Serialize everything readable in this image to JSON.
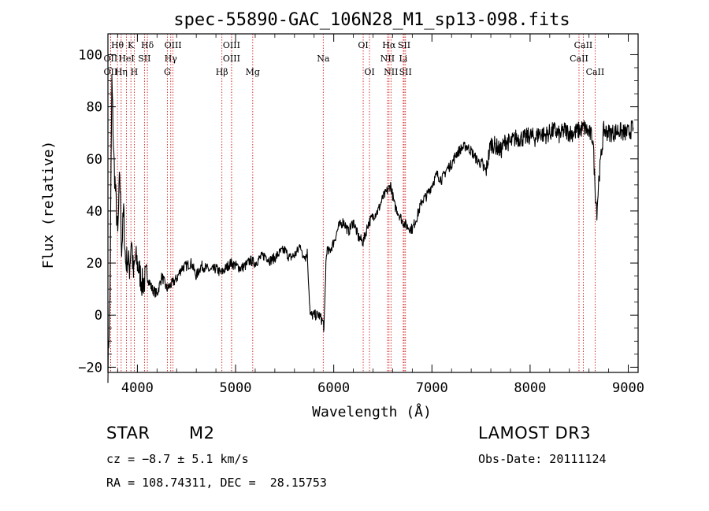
{
  "chart_data": {
    "type": "line",
    "title": "spec-55890-GAC_106N28_M1_sp13-098.fits",
    "xlabel": "Wavelength (Å)",
    "ylabel": "Flux (relative)",
    "xlim": [
      3700,
      9100
    ],
    "ylim": [
      -22,
      108
    ],
    "xticks": [
      4000,
      5000,
      6000,
      7000,
      8000,
      9000
    ],
    "yticks": [
      -20,
      0,
      20,
      40,
      60,
      80,
      100
    ],
    "grid": false,
    "series": [
      {
        "name": "flux",
        "x": [
          3700,
          3720,
          3740,
          3760,
          3780,
          3800,
          3820,
          3840,
          3860,
          3880,
          3900,
          3920,
          3940,
          3960,
          3980,
          4000,
          4050,
          4100,
          4150,
          4200,
          4250,
          4300,
          4350,
          4400,
          4450,
          4500,
          4550,
          4600,
          4650,
          4700,
          4750,
          4800,
          4850,
          4900,
          4950,
          5000,
          5050,
          5100,
          5150,
          5200,
          5250,
          5300,
          5350,
          5400,
          5450,
          5500,
          5550,
          5600,
          5620,
          5640,
          5660,
          5680,
          5700,
          5710,
          5720,
          5730,
          5760,
          5800,
          5850,
          5880,
          5895,
          5900,
          5910,
          5920,
          5930,
          5950,
          6000,
          6050,
          6100,
          6150,
          6200,
          6250,
          6300,
          6350,
          6400,
          6450,
          6500,
          6550,
          6580,
          6600,
          6620,
          6650,
          6700,
          6750,
          6800,
          6850,
          6900,
          6950,
          7000,
          7050,
          7100,
          7150,
          7200,
          7250,
          7300,
          7350,
          7400,
          7450,
          7500,
          7550,
          7600,
          7650,
          7700,
          7750,
          7800,
          7850,
          7900,
          7950,
          8000,
          8050,
          8100,
          8150,
          8200,
          8250,
          8300,
          8350,
          8400,
          8450,
          8500,
          8550,
          8600,
          8640,
          8660,
          8680,
          8700,
          8750,
          8800,
          8850,
          8900,
          8950,
          9000,
          9050
        ],
        "y": [
          -20,
          5,
          90,
          60,
          45,
          30,
          55,
          25,
          40,
          20,
          22,
          18,
          30,
          15,
          22,
          20,
          12,
          15,
          10,
          8,
          15,
          10,
          12,
          14,
          18,
          19,
          20,
          15,
          19,
          18,
          17,
          18,
          16,
          18,
          20,
          19,
          18,
          19,
          21,
          20,
          22,
          23,
          21,
          22,
          24,
          25,
          22,
          23,
          24,
          25,
          28,
          22,
          24,
          22,
          23,
          24,
          0,
          0,
          0,
          -2,
          -3,
          -6,
          5,
          20,
          25,
          24,
          28,
          34,
          36,
          32,
          36,
          30,
          28,
          35,
          38,
          40,
          45,
          48,
          50,
          46,
          42,
          40,
          36,
          34,
          33,
          38,
          44,
          46,
          50,
          54,
          52,
          56,
          58,
          62,
          64,
          65,
          63,
          60,
          58,
          55,
          66,
          65,
          63,
          67,
          66,
          68,
          68,
          68,
          69,
          68,
          70,
          69,
          70,
          71,
          69,
          71,
          70,
          70,
          71,
          72,
          70,
          68,
          50,
          40,
          52,
          71,
          70,
          70,
          71,
          70,
          70,
          72
        ]
      }
    ],
    "spectral_lines": [
      {
        "label": "Hθ",
        "wavelength": 3797,
        "row": 0
      },
      {
        "label": "K",
        "wavelength": 3934,
        "row": 0
      },
      {
        "label": "Hδ",
        "wavelength": 4102,
        "row": 0
      },
      {
        "label": "OIII",
        "wavelength": 4363,
        "row": 0
      },
      {
        "label": "OIII",
        "wavelength": 4959,
        "row": 0
      },
      {
        "label": "OI",
        "wavelength": 6300,
        "row": 0
      },
      {
        "label": "Hα",
        "wavelength": 6563,
        "row": 0
      },
      {
        "label": "SII",
        "wavelength": 6717,
        "row": 0
      },
      {
        "label": "CaII",
        "wavelength": 8542,
        "row": 0
      },
      {
        "label": "OII",
        "wavelength": 3727,
        "row": 1
      },
      {
        "label": "HeI",
        "wavelength": 3889,
        "row": 1
      },
      {
        "label": "SII",
        "wavelength": 4072,
        "row": 1
      },
      {
        "label": "Hγ",
        "wavelength": 4340,
        "row": 1
      },
      {
        "label": "OIII",
        "wavelength": 4959,
        "row": 1
      },
      {
        "label": "NII",
        "wavelength": 6548,
        "row": 1
      },
      {
        "label": "Li",
        "wavelength": 6708,
        "row": 1
      },
      {
        "label": "CaII",
        "wavelength": 8498,
        "row": 1
      },
      {
        "label": "OII",
        "wavelength": 3727,
        "row": 2
      },
      {
        "label": "Hη",
        "wavelength": 3835,
        "row": 2
      },
      {
        "label": "H",
        "wavelength": 3968,
        "row": 2
      },
      {
        "label": "G",
        "wavelength": 4305,
        "row": 2
      },
      {
        "label": "Hβ",
        "wavelength": 4861,
        "row": 2
      },
      {
        "label": "Mg",
        "wavelength": 5175,
        "row": 2
      },
      {
        "label": "Na",
        "wavelength": 5893,
        "row": 1
      },
      {
        "label": "OI",
        "wavelength": 6364,
        "row": 2
      },
      {
        "label": "NII",
        "wavelength": 6583,
        "row": 2
      },
      {
        "label": "SII",
        "wavelength": 6731,
        "row": 2
      },
      {
        "label": "CaII",
        "wavelength": 8662,
        "row": 2
      }
    ],
    "line_color": "#000000",
    "marker_color": "#cc0000"
  },
  "info": {
    "object_class": "STAR",
    "subclass": "M2",
    "survey": "LAMOST DR3",
    "cz": "cz = −8.7 ± 5.1 km/s",
    "obs_date": "Obs-Date: 20111124",
    "coords": "RA = 108.74311, DEC =  28.15753"
  }
}
